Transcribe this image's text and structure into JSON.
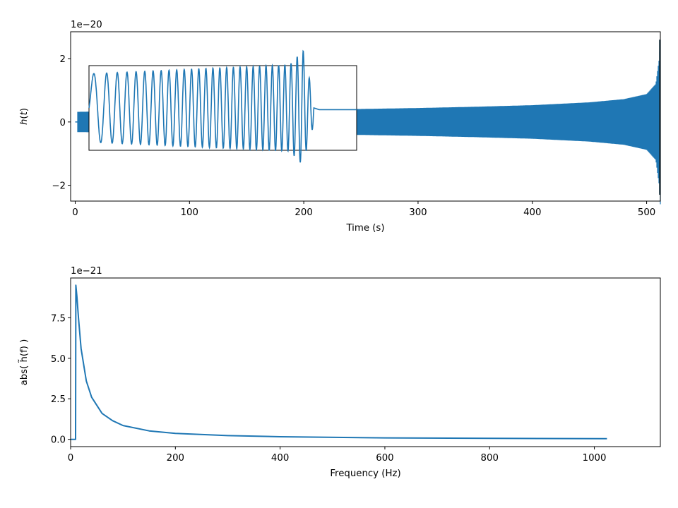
{
  "chart_data": [
    {
      "type": "line",
      "xlabel": "Time (s)",
      "ylabel": "h(t)",
      "offset_text": "1e−20",
      "xlim": [
        -4,
        512
      ],
      "ylim": [
        -2.5,
        2.85
      ],
      "x_ticks": [
        0,
        100,
        200,
        300,
        400,
        500
      ],
      "y_ticks": [
        -2,
        0,
        2
      ],
      "y_tick_labels": [
        "−2",
        "0",
        "2"
      ],
      "grid": false,
      "color": "#1f77b4",
      "series": [
        {
          "description": "inspiral chirp: zero until ~0 s, oscillation amplitude growing from ~0.35 to ~0.9 then peaking near 512 s",
          "envelope": [
            [
              0,
              0
            ],
            [
              1,
              0.05
            ],
            [
              2,
              0.32
            ],
            [
              50,
              0.34
            ],
            [
              100,
              0.35
            ],
            [
              150,
              0.37
            ],
            [
              200,
              0.39
            ],
            [
              250,
              0.41
            ],
            [
              300,
              0.44
            ],
            [
              350,
              0.48
            ],
            [
              400,
              0.53
            ],
            [
              450,
              0.62
            ],
            [
              480,
              0.72
            ],
            [
              500,
              0.88
            ],
            [
              508,
              1.2
            ],
            [
              511,
              2.0
            ],
            [
              512,
              2.6
            ]
          ],
          "end_min": -2.3
        }
      ],
      "inset": {
        "description": "zoom on merger",
        "envelope": [
          [
            0.0,
            0.95
          ],
          [
            0.75,
            1.2
          ],
          [
            0.8,
            1.6
          ],
          [
            0.82,
            0.9
          ],
          [
            0.86,
            0.05
          ],
          [
            1.0,
            0.0
          ]
        ],
        "baseline": 0.38
      }
    },
    {
      "type": "line",
      "xlabel": "Frequency (Hz)",
      "ylabel": "abs( h̃(f) )",
      "offset_text": "1e−21",
      "xlim": [
        0,
        1126
      ],
      "ylim": [
        -0.45,
        9.95
      ],
      "x_ticks": [
        0,
        200,
        400,
        600,
        800,
        1000
      ],
      "y_ticks": [
        0.0,
        2.5,
        5.0,
        7.5
      ],
      "y_tick_labels": [
        "0.0",
        "2.5",
        "5.0",
        "7.5"
      ],
      "grid": false,
      "color": "#1f77b4",
      "series": [
        {
          "x": [
            0,
            9.5,
            10,
            12,
            15,
            20,
            30,
            40,
            60,
            80,
            100,
            150,
            200,
            300,
            400,
            600,
            800,
            1024
          ],
          "values": [
            0.0,
            0.0,
            9.5,
            8.8,
            7.5,
            5.6,
            3.6,
            2.6,
            1.6,
            1.15,
            0.85,
            0.52,
            0.37,
            0.23,
            0.16,
            0.09,
            0.06,
            0.04
          ]
        }
      ]
    }
  ]
}
